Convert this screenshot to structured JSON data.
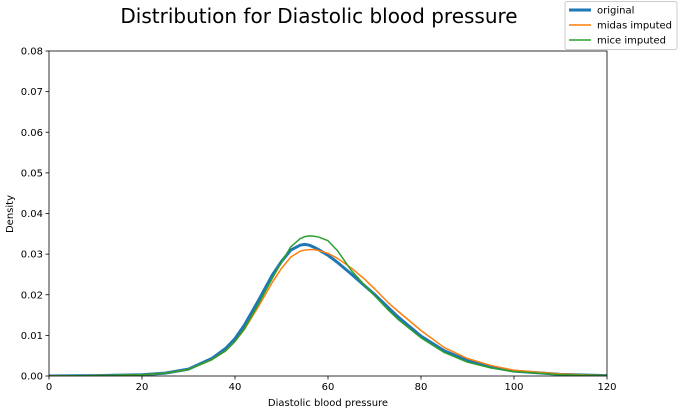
{
  "chart_data": {
    "type": "line",
    "title": "Distribution for Diastolic blood pressure",
    "xlabel": "Diastolic blood pressure",
    "ylabel": "Density",
    "xlim": [
      0,
      120
    ],
    "ylim": [
      0,
      0.08
    ],
    "x_ticks": [
      "0",
      "20",
      "40",
      "60",
      "80",
      "100",
      "120"
    ],
    "y_ticks": [
      "0.00",
      "0.01",
      "0.02",
      "0.03",
      "0.04",
      "0.05",
      "0.06",
      "0.07",
      "0.08"
    ],
    "grid": false,
    "legend_position": "top-right",
    "x": [
      0,
      10,
      20,
      25,
      30,
      35,
      38,
      40,
      42,
      45,
      48,
      50,
      52,
      54,
      55,
      56,
      57,
      58,
      60,
      62,
      65,
      68,
      70,
      73,
      75,
      80,
      85,
      90,
      95,
      100,
      110,
      120
    ],
    "series": [
      {
        "name": "original",
        "color": "#1f77b4",
        "width": 3,
        "values": [
          0,
          0.0001,
          0.0003,
          0.0007,
          0.0017,
          0.0043,
          0.0068,
          0.0092,
          0.0125,
          0.0185,
          0.0248,
          0.0282,
          0.031,
          0.0322,
          0.0324,
          0.0322,
          0.0317,
          0.0311,
          0.0297,
          0.028,
          0.0251,
          0.0221,
          0.0201,
          0.0168,
          0.0146,
          0.0098,
          0.0062,
          0.0038,
          0.0022,
          0.0012,
          0.0004,
          0.0001
        ]
      },
      {
        "name": "midas imputed",
        "color": "#ff7f0e",
        "width": 1.5,
        "values": [
          0,
          0.0001,
          0.0003,
          0.0007,
          0.0016,
          0.004,
          0.0062,
          0.0085,
          0.0114,
          0.017,
          0.023,
          0.0265,
          0.0293,
          0.0307,
          0.031,
          0.0311,
          0.0311,
          0.0309,
          0.0302,
          0.029,
          0.0266,
          0.0237,
          0.0215,
          0.018,
          0.016,
          0.0112,
          0.007,
          0.0043,
          0.0026,
          0.0014,
          0.0005,
          0.0001
        ]
      },
      {
        "name": "mice imputed",
        "color": "#2ca02c",
        "width": 1.5,
        "values": [
          0,
          0.0001,
          0.0003,
          0.0007,
          0.0016,
          0.004,
          0.0062,
          0.0085,
          0.0116,
          0.0176,
          0.024,
          0.028,
          0.0318,
          0.0338,
          0.0343,
          0.0345,
          0.0344,
          0.0342,
          0.0333,
          0.0309,
          0.026,
          0.0222,
          0.0198,
          0.0162,
          0.014,
          0.0094,
          0.0058,
          0.0034,
          0.002,
          0.0011,
          0.0003,
          0.0001
        ]
      }
    ]
  }
}
